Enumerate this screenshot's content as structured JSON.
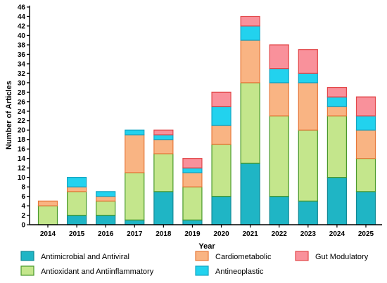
{
  "chart_data": {
    "type": "bar",
    "stacked": true,
    "title": "",
    "xlabel": "Year",
    "ylabel": "Number of Articles",
    "ylim": [
      0,
      46
    ],
    "y_tick_step": 2,
    "grid": false,
    "legend_position": "bottom",
    "categories": [
      "2014",
      "2015",
      "2016",
      "2017",
      "2018",
      "2019",
      "2020",
      "2021",
      "2022",
      "2023",
      "2024",
      "2025"
    ],
    "series": [
      {
        "name": "Antimicrobial and Antiviral",
        "fill": "#1fb5c5",
        "stroke": "#138a96",
        "values": [
          0,
          2,
          2,
          1,
          7,
          1,
          6,
          13,
          6,
          5,
          10,
          7
        ]
      },
      {
        "name": "Antioxidant and Antiinflammatory",
        "fill": "#c4e68c",
        "stroke": "#4a9a2b",
        "values": [
          4,
          5,
          3,
          10,
          8,
          7,
          11,
          17,
          17,
          15,
          13,
          7
        ]
      },
      {
        "name": "Cardiometabolic",
        "fill": "#f9b483",
        "stroke": "#e6783a",
        "values": [
          1,
          1,
          1,
          8,
          3,
          3,
          4,
          9,
          7,
          10,
          2,
          6
        ]
      },
      {
        "name": "Antineoplastic",
        "fill": "#22d2ee",
        "stroke": "#14a5c2",
        "values": [
          0,
          2,
          1,
          1,
          1,
          1,
          4,
          3,
          3,
          2,
          2,
          3
        ]
      },
      {
        "name": "Gut Modulatory",
        "fill": "#f9919b",
        "stroke": "#e2484a",
        "values": [
          0,
          0,
          0,
          0,
          1,
          2,
          3,
          2,
          5,
          5,
          2,
          4
        ]
      }
    ]
  }
}
